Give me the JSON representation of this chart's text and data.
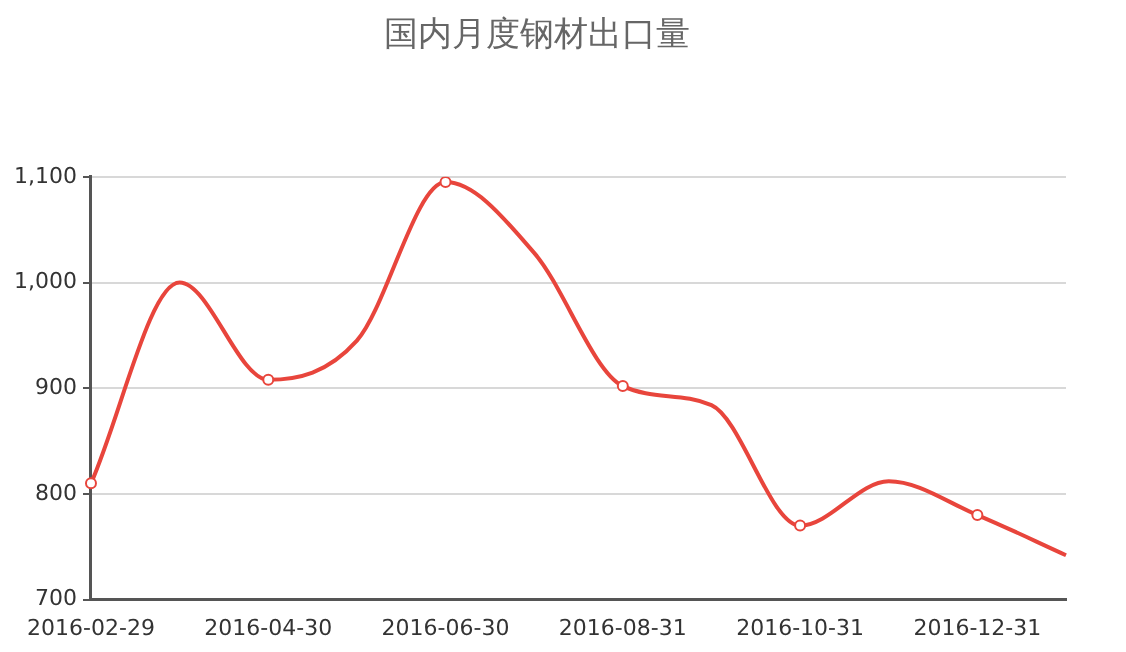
{
  "chart_data": {
    "type": "line",
    "title": "国内月度钢材出口量",
    "categories": [
      "2016-02-29",
      null,
      "2016-04-30",
      null,
      "2016-06-30",
      null,
      "2016-08-31",
      null,
      "2016-10-31",
      null,
      "2016-12-31",
      null
    ],
    "series": [
      {
        "color": "#e8453c",
        "values": [
          810,
          1000,
          908,
          945,
          1095,
          1028,
          902,
          884,
          770,
          812,
          780,
          742
        ]
      }
    ],
    "ylim": [
      700,
      1100
    ],
    "yticks": [
      {
        "value": 700,
        "label": "700"
      },
      {
        "value": 800,
        "label": "800"
      },
      {
        "value": 900,
        "label": "900"
      },
      {
        "value": 1000,
        "label": "1,000"
      },
      {
        "value": 1100,
        "label": "1,100"
      }
    ],
    "grid": "y",
    "legend": false,
    "marker": "circle",
    "line_style": "solid"
  }
}
